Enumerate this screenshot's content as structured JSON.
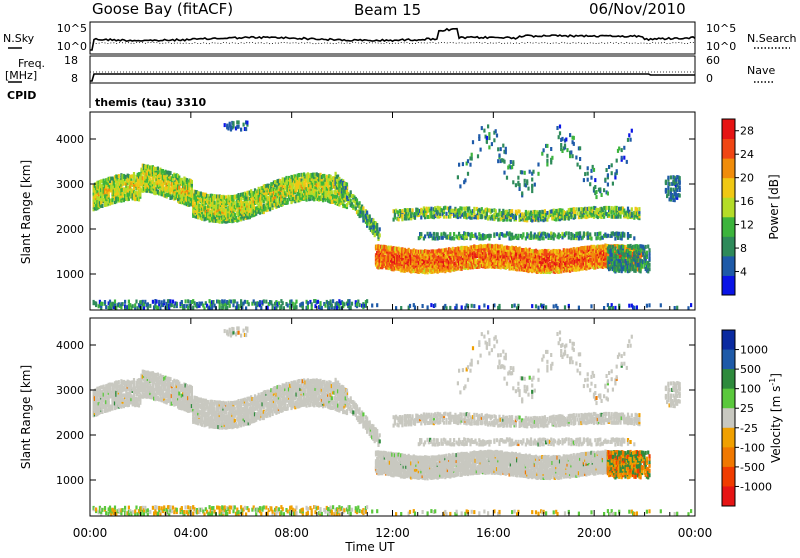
{
  "header": {
    "station": "Goose Bay (fitACF)",
    "beam": "Beam 15",
    "date": "06/Nov/2010"
  },
  "noise_panel": {
    "left_label": "N.Sky",
    "left_top": "10^5",
    "left_bottom": "10^0",
    "right_label": "N.Search",
    "right_top": "10^5",
    "right_bottom": "10^0"
  },
  "freq_panel": {
    "left_label_1": "Freq.",
    "left_label_2": "[MHz]",
    "left_top": "18",
    "left_bottom": "8",
    "right_label": "Nave",
    "right_top": "60",
    "right_bottom": "0"
  },
  "cpid": {
    "label": "CPID",
    "value": "themis (tau) 3310"
  },
  "colors": {
    "power": [
      "#0a14e6",
      "#1e5aa8",
      "#2e8a5a",
      "#3cb43c",
      "#b4dc28",
      "#f0c814",
      "#f08c0a",
      "#f04614",
      "#e61414"
    ],
    "velocity": [
      "#0a2aa0",
      "#1e5aa8",
      "#2e8a3c",
      "#5ac83c",
      "#c8c8c0",
      "#f0a000",
      "#f07800",
      "#f03c00",
      "#e61414"
    ]
  },
  "chart_data": [
    {
      "type": "heatmap",
      "panel": "power",
      "ylabel": "Slant Range [km]",
      "ylim": [
        200,
        4600
      ],
      "xlim": [
        "00:00",
        "24:00"
      ],
      "yticks": [
        "1000",
        "2000",
        "3000",
        "4000"
      ],
      "colorbar_label": "Power [dB]",
      "colorbar_ticks": [
        "4",
        "8",
        "12",
        "16",
        "20",
        "24",
        "28"
      ],
      "colorbar_range": [
        0,
        30
      ]
    },
    {
      "type": "heatmap",
      "panel": "velocity",
      "ylabel": "Slant Range [km]",
      "ylim": [
        200,
        4600
      ],
      "xlim": [
        "00:00",
        "24:00"
      ],
      "yticks": [
        "1000",
        "2000",
        "3000",
        "4000"
      ],
      "colorbar_label": "Velocity [m s-1]",
      "colorbar_ticks": [
        "-1000",
        "-500",
        "-100",
        "-25",
        "25",
        "100",
        "500",
        "1000"
      ],
      "xticks": [
        "00:00",
        "04:00",
        "08:00",
        "12:00",
        "16:00",
        "20:00",
        "00:00"
      ],
      "xlabel": "Time UT"
    }
  ]
}
